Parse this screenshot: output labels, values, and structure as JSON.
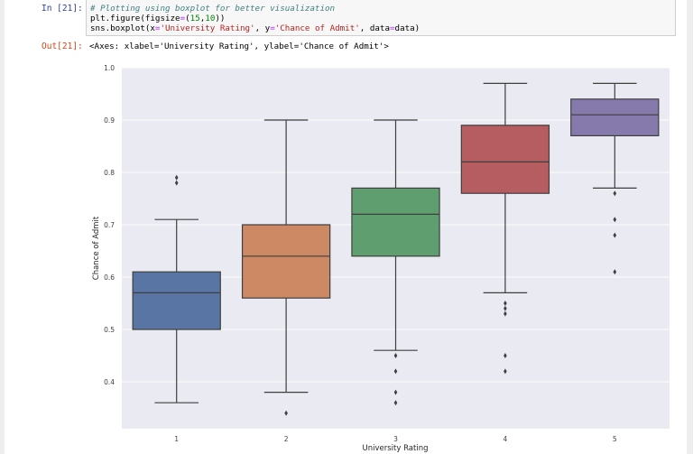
{
  "notebook": {
    "in_prompt": "In [21]:",
    "out_prompt": "Out[21]:",
    "code_lines": [
      "# Plotting using boxplot for better visualization",
      "plt.figure(figsize=(15,10))",
      "sns.boxplot(x='University Rating', y='Chance of Admit', data=data)"
    ],
    "output_text": "<Axes: xlabel='University Rating', ylabel='Chance of Admit'>"
  },
  "chart_data": {
    "type": "boxplot",
    "title": "",
    "xlabel": "University Rating",
    "ylabel": "Chance of Admit",
    "categories": [
      "1",
      "2",
      "3",
      "4",
      "5"
    ],
    "yticks": [
      "0.4",
      "0.5",
      "0.6",
      "0.7",
      "0.8",
      "0.9",
      "1.0"
    ],
    "ylim": [
      0.31,
      1.0
    ],
    "grid": true,
    "background": "#eaeaf2",
    "colors": [
      "#5975a4",
      "#cc8963",
      "#5f9e6e",
      "#b55d60",
      "#857aab"
    ],
    "boxes": [
      {
        "category": "1",
        "whisker_low": 0.36,
        "q1": 0.5,
        "median": 0.57,
        "q3": 0.61,
        "whisker_high": 0.71,
        "outliers": [
          0.79,
          0.78
        ]
      },
      {
        "category": "2",
        "whisker_low": 0.38,
        "q1": 0.56,
        "median": 0.64,
        "q3": 0.7,
        "whisker_high": 0.9,
        "outliers": [
          0.34
        ]
      },
      {
        "category": "3",
        "whisker_low": 0.46,
        "q1": 0.64,
        "median": 0.72,
        "q3": 0.77,
        "whisker_high": 0.9,
        "outliers": [
          0.45,
          0.42,
          0.38,
          0.36
        ]
      },
      {
        "category": "4",
        "whisker_low": 0.57,
        "q1": 0.76,
        "median": 0.82,
        "q3": 0.89,
        "whisker_high": 0.97,
        "outliers": [
          0.55,
          0.54,
          0.53,
          0.45,
          0.42
        ]
      },
      {
        "category": "5",
        "whisker_low": 0.77,
        "q1": 0.87,
        "median": 0.91,
        "q3": 0.94,
        "whisker_high": 0.97,
        "outliers": [
          0.76,
          0.71,
          0.68,
          0.61
        ]
      }
    ]
  }
}
